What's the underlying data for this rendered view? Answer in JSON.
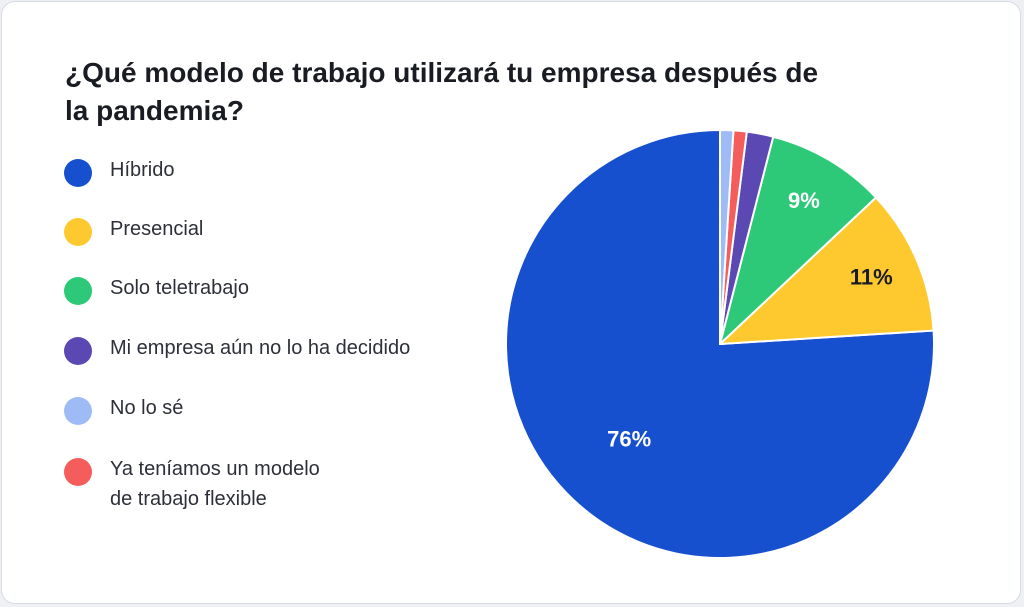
{
  "title": "¿Qué modelo de trabajo utilizará tu empresa después de la pandemia?",
  "chart_data": {
    "type": "pie",
    "title": "¿Qué modelo de trabajo utilizará tu empresa después de la pandemia?",
    "start_angle_deg": 0,
    "direction": "counterclockwise",
    "legend_placement": "left",
    "slices": [
      {
        "name": "Híbrido",
        "value": 76,
        "label": "76%",
        "color": "#1650ce",
        "label_color": "#ffffff"
      },
      {
        "name": "Presencial",
        "value": 11,
        "label": "11%",
        "color": "#fec92e",
        "label_color": "#1a1c23"
      },
      {
        "name": "Solo teletrabajo",
        "value": 9,
        "label": "9%",
        "color": "#2ec978",
        "label_color": "#ffffff"
      },
      {
        "name": "Mi empresa aún no lo ha decidido",
        "value": 2,
        "label": "",
        "color": "#5c48b3",
        "label_color": "#ffffff"
      },
      {
        "name": "Ya teníamos un modelo de trabajo flexible",
        "value": 1,
        "label": "",
        "color": "#f55c5c",
        "label_color": "#ffffff"
      },
      {
        "name": "No lo sé",
        "value": 1,
        "label": "",
        "color": "#9fbbf5",
        "label_color": "#ffffff"
      }
    ]
  },
  "legend": [
    {
      "label": "Híbrido",
      "color": "#1650ce"
    },
    {
      "label": "Presencial",
      "color": "#fec92e"
    },
    {
      "label": "Solo teletrabajo",
      "color": "#2ec978"
    },
    {
      "label": "Mi empresa aún no lo ha decidido",
      "color": "#5c48b3"
    },
    {
      "label": "No lo sé",
      "color": "#9fbbf5"
    },
    {
      "label": "Ya teníamos un modelo\nde trabajo flexible",
      "color": "#f55c5c"
    }
  ]
}
